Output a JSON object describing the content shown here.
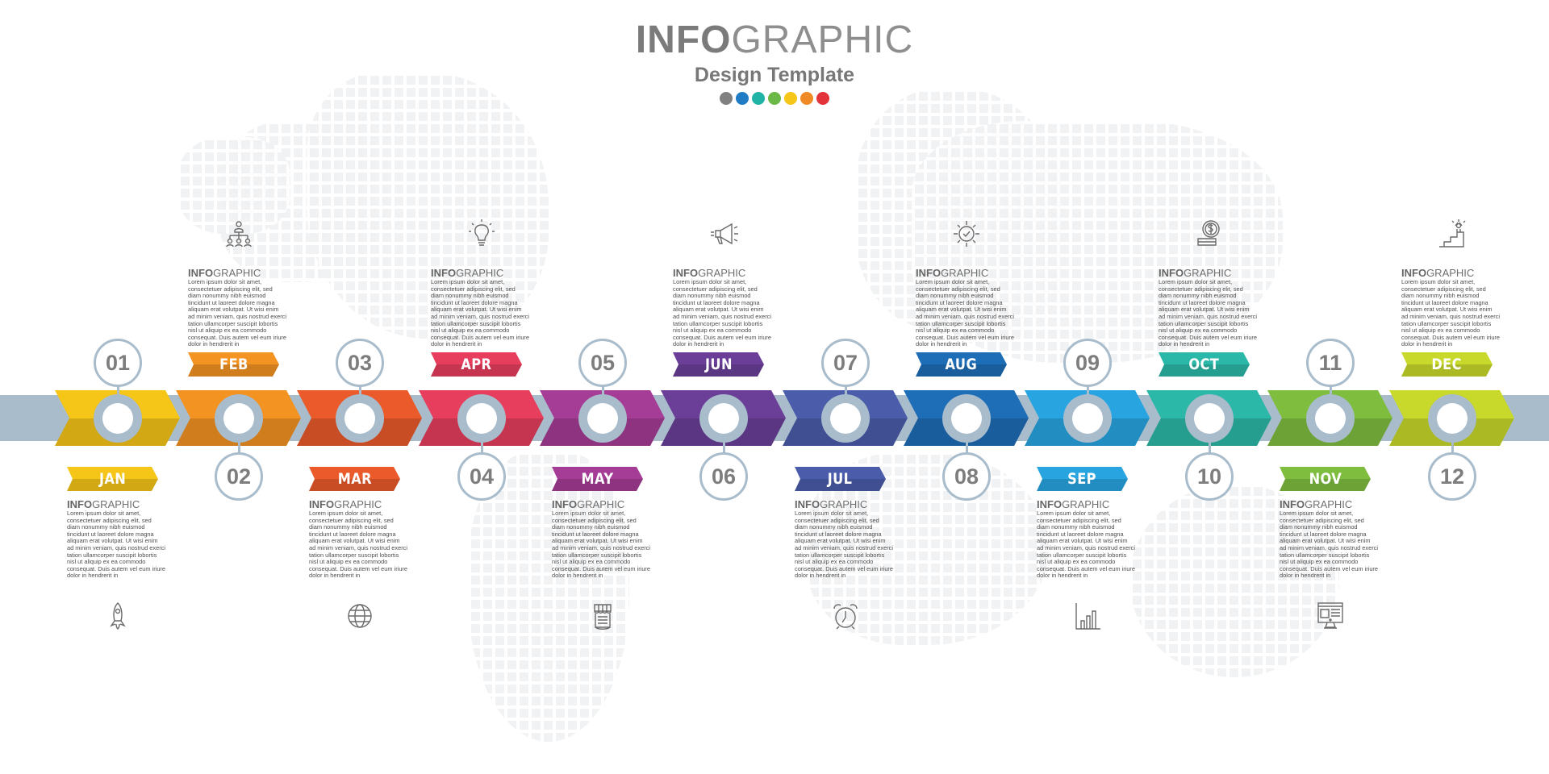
{
  "title": {
    "bold": "INFO",
    "light": "GRAPHIC",
    "subtitle": "Design Template",
    "dots": [
      "#808080",
      "#1f7cc4",
      "#1fb3a6",
      "#6ab845",
      "#f5c518",
      "#f08a24",
      "#e2323a"
    ]
  },
  "block_heading": {
    "bold": "INFO",
    "light": "GRAPHIC"
  },
  "body_text": "Lorem ipsum dolor sit amet, consectetuer adipiscing elit, sed diam nonummy nibh euismod tincidunt ut laoreet dolore magna aliquam erat volutpat. Ut wisi enim ad minim veniam, quis nostrud exerci tation ullamcorper suscipit lobortis nisl ut aliquip ex ea commodo consequat. Duis autem vel eum iriure dolor in hendrerit in",
  "steps": [
    {
      "number": "01",
      "month": "JAN",
      "color": "#f5c518",
      "icon": "rocket-icon"
    },
    {
      "number": "02",
      "month": "FEB",
      "color": "#f39322",
      "icon": "org-chart-icon"
    },
    {
      "number": "03",
      "month": "MAR",
      "color": "#ea5a2a",
      "icon": "globe-icon"
    },
    {
      "number": "04",
      "month": "APR",
      "color": "#e63e5c",
      "icon": "lightbulb-icon"
    },
    {
      "number": "05",
      "month": "MAY",
      "color": "#a53c95",
      "icon": "shop-icon"
    },
    {
      "number": "06",
      "month": "JUN",
      "color": "#6b3f98",
      "icon": "megaphone-icon"
    },
    {
      "number": "07",
      "month": "JUL",
      "color": "#4b5caa",
      "icon": "alarm-clock-icon"
    },
    {
      "number": "08",
      "month": "AUG",
      "color": "#1e6db7",
      "icon": "gear-icon"
    },
    {
      "number": "09",
      "month": "SEP",
      "color": "#28a5e0",
      "icon": "bar-chart-icon"
    },
    {
      "number": "10",
      "month": "OCT",
      "color": "#2cb8a8",
      "icon": "coin-icon"
    },
    {
      "number": "11",
      "month": "NOV",
      "color": "#7fbd3f",
      "icon": "monitor-icon"
    },
    {
      "number": "12",
      "month": "DEC",
      "color": "#c8d92b",
      "icon": "stairs-success-icon"
    }
  ]
}
